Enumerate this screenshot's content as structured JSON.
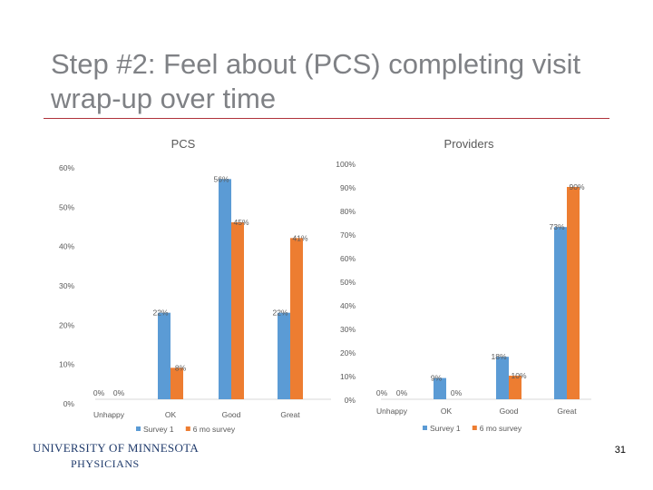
{
  "slide": {
    "title": "Step #2: Feel about (PCS) completing visit wrap-up over time",
    "page_number": "31",
    "logo": {
      "line1": "UNIVERSITY OF MINNESOTA",
      "line2": "PHYSICIANS"
    }
  },
  "colors": {
    "survey1": "#5b9bd5",
    "survey2": "#ed7d31",
    "axis": "#d9d9d9",
    "text": "#595959",
    "title": "#7f8185",
    "rule": "#b0313a"
  },
  "chart_data": [
    {
      "type": "bar",
      "title": "PCS",
      "categories": [
        "Unhappy",
        "OK",
        "Good",
        "Great"
      ],
      "series": [
        {
          "name": "Survey 1",
          "values": [
            0,
            22,
            56,
            22
          ],
          "labels": [
            "0%",
            "22%",
            "56%",
            "22%"
          ]
        },
        {
          "name": "6 mo survey",
          "values": [
            0,
            8,
            45,
            41
          ],
          "labels": [
            "0%",
            "8%",
            "45%",
            "41%"
          ]
        }
      ],
      "ylim": [
        0,
        60
      ],
      "yticks": [
        0,
        10,
        20,
        30,
        40,
        50,
        60
      ],
      "ytick_labels": [
        "0%",
        "10%",
        "20%",
        "30%",
        "40%",
        "50%",
        "60%"
      ],
      "xlabel": "",
      "ylabel": "",
      "legend": "bottom"
    },
    {
      "type": "bar",
      "title": "Providers",
      "categories": [
        "Unhappy",
        "OK",
        "Good",
        "Great"
      ],
      "series": [
        {
          "name": "Survey 1",
          "values": [
            0,
            9,
            18,
            73
          ],
          "labels": [
            "0%",
            "9%",
            "18%",
            "73%"
          ]
        },
        {
          "name": "6 mo survey",
          "values": [
            0,
            0,
            10,
            90
          ],
          "labels": [
            "0%",
            "0%",
            "10%",
            "90%"
          ]
        }
      ],
      "ylim": [
        0,
        100
      ],
      "yticks": [
        0,
        10,
        20,
        30,
        40,
        50,
        60,
        70,
        80,
        90,
        100
      ],
      "ytick_labels": [
        "0%",
        "10%",
        "20%",
        "30%",
        "40%",
        "50%",
        "60%",
        "70%",
        "80%",
        "90%",
        "100%"
      ],
      "xlabel": "",
      "ylabel": "",
      "legend": "bottom"
    }
  ]
}
